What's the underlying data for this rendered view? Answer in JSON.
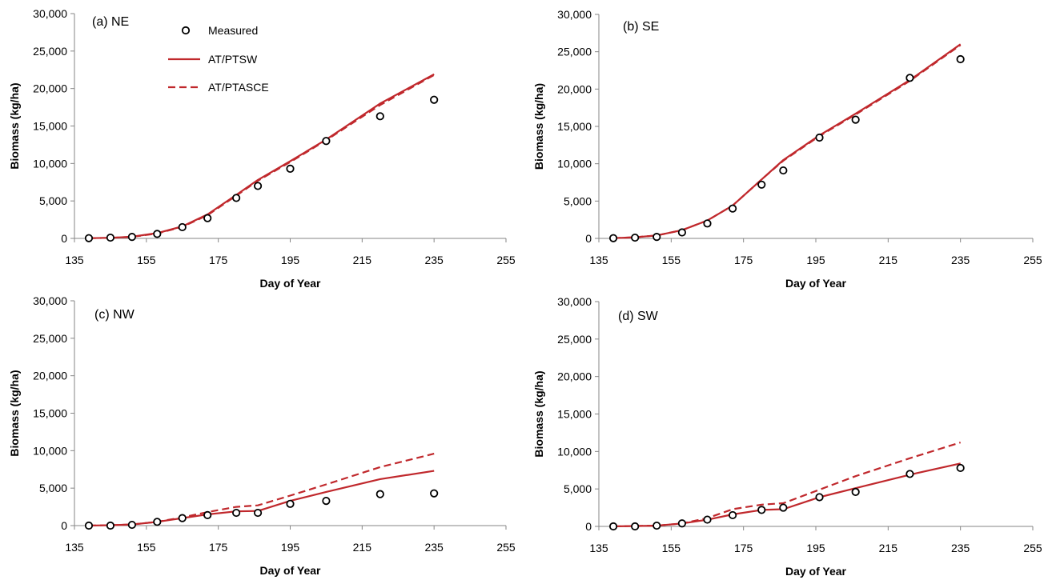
{
  "chart_data": [
    {
      "type": "line",
      "title": "(a) NE",
      "xlabel": "Day of Year",
      "ylabel": "Biomass (kg/ha)",
      "xlim": [
        135,
        255
      ],
      "ylim": [
        0,
        30000
      ],
      "xticks": [
        "135",
        "155",
        "175",
        "195",
        "215",
        "235",
        "255"
      ],
      "yticks": [
        "0",
        "5,000",
        "10,000",
        "15,000",
        "20,000",
        "25,000",
        "30,000"
      ],
      "grid": false,
      "legend": "top-left",
      "series": [
        {
          "name": "Measured",
          "style": "markers",
          "color": "#000000",
          "x": [
            139,
            145,
            151,
            158,
            165,
            172,
            180,
            186,
            195,
            205,
            220,
            235
          ],
          "y": [
            30,
            100,
            200,
            600,
            1500,
            2700,
            5400,
            7000,
            9300,
            13000,
            16300,
            18500
          ]
        },
        {
          "name": "AT/PTSW",
          "style": "solid",
          "color": "#c0282c",
          "x": [
            139,
            145,
            151,
            158,
            165,
            172,
            180,
            186,
            195,
            205,
            220,
            235
          ],
          "y": [
            30,
            80,
            220,
            700,
            1600,
            3200,
            5800,
            7800,
            10300,
            13200,
            18000,
            21900
          ]
        },
        {
          "name": "AT/PTASCE",
          "style": "dashed",
          "color": "#c0282c",
          "x": [
            139,
            145,
            151,
            158,
            165,
            172,
            180,
            186,
            195,
            205,
            220,
            235
          ],
          "y": [
            30,
            80,
            200,
            650,
            1550,
            3100,
            5700,
            7700,
            10200,
            13100,
            17800,
            21800
          ]
        }
      ]
    },
    {
      "type": "line",
      "title": "(b) SE",
      "xlabel": "Day of Year",
      "ylabel": "Biomass (kg/ha)",
      "xlim": [
        135,
        255
      ],
      "ylim": [
        0,
        30000
      ],
      "xticks": [
        "135",
        "155",
        "175",
        "195",
        "215",
        "235",
        "255"
      ],
      "yticks": [
        "0",
        "5,000",
        "10,000",
        "15,000",
        "20,000",
        "25,000",
        "30,000"
      ],
      "grid": false,
      "series": [
        {
          "name": "Measured",
          "style": "markers",
          "color": "#000000",
          "x": [
            139,
            145,
            151,
            158,
            165,
            172,
            180,
            186,
            196,
            206,
            221,
            235
          ],
          "y": [
            30,
            100,
            200,
            800,
            2000,
            4000,
            7200,
            9100,
            13500,
            15900,
            21500,
            24000
          ]
        },
        {
          "name": "AT/PTSW",
          "style": "solid",
          "color": "#c0282c",
          "x": [
            139,
            145,
            151,
            158,
            165,
            172,
            180,
            186,
            196,
            206,
            221,
            235
          ],
          "y": [
            30,
            150,
            400,
            1100,
            2400,
            4400,
            7900,
            10500,
            13800,
            16700,
            21200,
            26000
          ]
        },
        {
          "name": "AT/PTASCE",
          "style": "dashed",
          "color": "#c0282c",
          "x": [
            139,
            145,
            151,
            158,
            165,
            172,
            180,
            186,
            196,
            206,
            221,
            235
          ],
          "y": [
            30,
            150,
            400,
            1100,
            2400,
            4400,
            7900,
            10400,
            13700,
            16600,
            21100,
            25900
          ]
        }
      ]
    },
    {
      "type": "line",
      "title": "(c) NW",
      "xlabel": "Day of Year",
      "ylabel": "Biomass (kg/ha)",
      "xlim": [
        135,
        255
      ],
      "ylim": [
        0,
        30000
      ],
      "xticks": [
        "135",
        "155",
        "175",
        "195",
        "215",
        "235",
        "255"
      ],
      "yticks": [
        "0",
        "5,000",
        "10,000",
        "15,000",
        "20,000",
        "25,000",
        "30,000"
      ],
      "grid": false,
      "series": [
        {
          "name": "Measured",
          "style": "markers",
          "color": "#000000",
          "x": [
            139,
            145,
            151,
            158,
            165,
            172,
            180,
            186,
            195,
            205,
            220,
            235
          ],
          "y": [
            0,
            0,
            100,
            500,
            1000,
            1400,
            1700,
            1700,
            2900,
            3300,
            4200,
            4300
          ]
        },
        {
          "name": "AT/PTSW",
          "style": "solid",
          "color": "#c0282c",
          "x": [
            139,
            145,
            151,
            158,
            165,
            172,
            180,
            186,
            195,
            205,
            220,
            235
          ],
          "y": [
            0,
            50,
            150,
            500,
            1000,
            1500,
            1900,
            1950,
            3300,
            4500,
            6200,
            7300
          ]
        },
        {
          "name": "AT/PTASCE",
          "style": "dashed",
          "color": "#c0282c",
          "x": [
            139,
            145,
            151,
            158,
            165,
            172,
            180,
            186,
            195,
            205,
            220,
            235
          ],
          "y": [
            0,
            50,
            150,
            500,
            1100,
            1800,
            2500,
            2700,
            4000,
            5500,
            7800,
            9600
          ]
        }
      ]
    },
    {
      "type": "line",
      "title": "(d) SW",
      "xlabel": "Day of Year",
      "ylabel": "Biomass (kg/ha)",
      "xlim": [
        135,
        255
      ],
      "ylim": [
        0,
        30000
      ],
      "xticks": [
        "135",
        "155",
        "175",
        "195",
        "215",
        "235",
        "255"
      ],
      "yticks": [
        "0",
        "5,000",
        "10,000",
        "15,000",
        "20,000",
        "25,000",
        "30,000"
      ],
      "grid": false,
      "series": [
        {
          "name": "Measured",
          "style": "markers",
          "color": "#000000",
          "x": [
            139,
            145,
            151,
            158,
            165,
            172,
            180,
            186,
            196,
            206,
            221,
            235
          ],
          "y": [
            0,
            0,
            100,
            400,
            900,
            1500,
            2200,
            2500,
            3900,
            4600,
            7000,
            7800
          ]
        },
        {
          "name": "AT/PTSW",
          "style": "solid",
          "color": "#c0282c",
          "x": [
            139,
            145,
            151,
            158,
            165,
            172,
            180,
            186,
            196,
            206,
            221,
            235
          ],
          "y": [
            0,
            50,
            100,
            400,
            900,
            1600,
            2200,
            2300,
            3900,
            5100,
            6900,
            8400
          ]
        },
        {
          "name": "AT/PTASCE",
          "style": "dashed",
          "color": "#c0282c",
          "x": [
            139,
            145,
            151,
            158,
            165,
            172,
            180,
            186,
            196,
            206,
            221,
            235
          ],
          "y": [
            0,
            50,
            100,
            400,
            1100,
            2300,
            2900,
            3100,
            4900,
            6700,
            9100,
            11200
          ]
        }
      ]
    }
  ]
}
